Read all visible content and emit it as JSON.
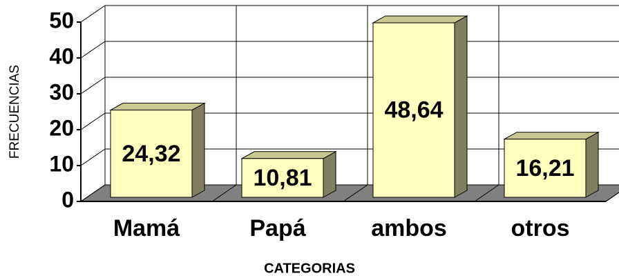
{
  "chart_data": {
    "type": "bar3d",
    "categories": [
      "Mamá",
      "Papá",
      "ambos",
      "otros"
    ],
    "values": [
      24.32,
      10.81,
      48.64,
      16.21
    ],
    "value_labels": [
      "24,32",
      "10,81",
      "48,64",
      "16,21"
    ],
    "color": "#ffffc0",
    "ylim": [
      0,
      50
    ],
    "yticks": [
      0,
      10,
      20,
      30,
      40,
      50
    ],
    "grid": true,
    "xlabel": "CATEGORIAS",
    "ylabel": "FRECUENCIAS"
  }
}
